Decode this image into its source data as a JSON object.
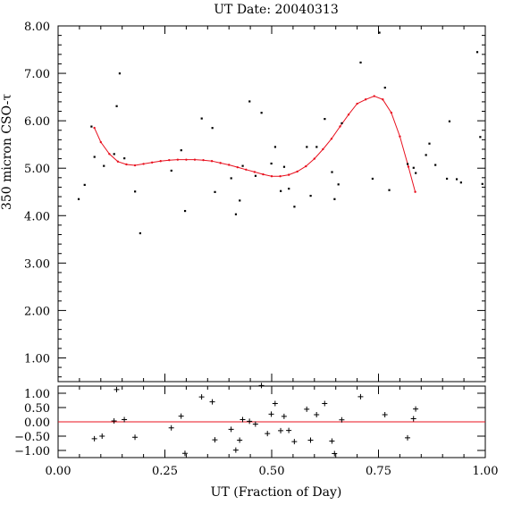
{
  "chart_data": [
    {
      "type": "scatter",
      "panel": "main",
      "title": "UT Date: 20040313",
      "ylabel": "350 micron CSO-τ",
      "xlim": [
        0.0,
        1.0
      ],
      "ylim": [
        0.5,
        8.0
      ],
      "yticks": [
        1.0,
        2.0,
        3.0,
        4.0,
        5.0,
        6.0,
        7.0,
        8.0
      ],
      "ytick_labels": [
        "1.00",
        "2.00",
        "3.00",
        "4.00",
        "5.00",
        "6.00",
        "7.00",
        "8.00"
      ],
      "grid": false,
      "series": [
        {
          "kind": "points",
          "x": [
            0.048,
            0.062,
            0.078,
            0.085,
            0.107,
            0.131,
            0.137,
            0.144,
            0.155,
            0.18,
            0.192,
            0.265,
            0.288,
            0.297,
            0.336,
            0.361,
            0.367,
            0.405,
            0.416,
            0.425,
            0.432,
            0.448,
            0.462,
            0.476,
            0.499,
            0.508,
            0.521,
            0.529,
            0.54,
            0.553,
            0.582,
            0.591,
            0.605,
            0.624,
            0.641,
            0.647,
            0.656,
            0.664,
            0.708,
            0.736,
            0.752,
            0.765,
            0.775,
            0.818,
            0.832,
            0.837,
            0.861,
            0.869,
            0.883,
            0.91,
            0.916,
            0.933,
            0.943,
            0.981,
            0.988,
            0.993
          ],
          "y": [
            4.35,
            4.65,
            5.88,
            5.24,
            5.05,
            5.3,
            6.31,
            7.0,
            5.21,
            4.51,
            3.63,
            4.95,
            5.38,
            4.1,
            6.05,
            5.85,
            4.5,
            4.79,
            4.03,
            4.32,
            5.05,
            6.41,
            4.84,
            6.17,
            5.1,
            5.45,
            4.52,
            5.03,
            4.57,
            4.19,
            5.45,
            4.42,
            5.45,
            6.04,
            4.92,
            4.35,
            4.66,
            5.95,
            7.23,
            4.78,
            7.86,
            6.7,
            4.54,
            5.09,
            5.01,
            4.9,
            5.28,
            5.52,
            5.07,
            4.78,
            5.99,
            4.77,
            4.7,
            7.45,
            5.66,
            4.67
          ]
        },
        {
          "kind": "fit",
          "x": [
            0.085,
            0.1,
            0.12,
            0.14,
            0.16,
            0.18,
            0.2,
            0.22,
            0.24,
            0.26,
            0.28,
            0.3,
            0.32,
            0.34,
            0.36,
            0.38,
            0.4,
            0.42,
            0.44,
            0.46,
            0.48,
            0.5,
            0.52,
            0.54,
            0.56,
            0.58,
            0.6,
            0.62,
            0.64,
            0.66,
            0.68,
            0.7,
            0.72,
            0.74,
            0.76,
            0.78,
            0.8,
            0.82,
            0.836
          ],
          "y": [
            5.85,
            5.55,
            5.3,
            5.14,
            5.08,
            5.06,
            5.09,
            5.12,
            5.15,
            5.17,
            5.18,
            5.18,
            5.18,
            5.17,
            5.15,
            5.11,
            5.07,
            5.02,
            4.97,
            4.92,
            4.87,
            4.83,
            4.83,
            4.86,
            4.93,
            5.04,
            5.2,
            5.4,
            5.62,
            5.88,
            6.13,
            6.36,
            6.45,
            6.52,
            6.45,
            6.17,
            5.67,
            5.03,
            4.5
          ]
        }
      ]
    },
    {
      "type": "scatter",
      "panel": "residuals",
      "xlabel": "UT (Fraction of Day)",
      "xlim": [
        0.0,
        1.0
      ],
      "ylim": [
        -1.25,
        1.25
      ],
      "xticks": [
        0.0,
        0.25,
        0.5,
        0.75,
        1.0
      ],
      "xtick_labels": [
        "0.00",
        "0.25",
        "0.50",
        "0.75",
        "1.00"
      ],
      "yticks": [
        -1.0,
        -0.5,
        0.0,
        0.5,
        1.0
      ],
      "ytick_labels": [
        "−1.00",
        "−0.50",
        "0.00",
        "0.50",
        "1.00"
      ],
      "zero_line": 0.0,
      "grid": false,
      "series": [
        {
          "kind": "points",
          "x": [
            0.085,
            0.103,
            0.131,
            0.137,
            0.155,
            0.18,
            0.265,
            0.288,
            0.297,
            0.336,
            0.361,
            0.367,
            0.405,
            0.416,
            0.425,
            0.432,
            0.448,
            0.462,
            0.476,
            0.49,
            0.499,
            0.508,
            0.521,
            0.529,
            0.54,
            0.553,
            0.582,
            0.591,
            0.605,
            0.624,
            0.641,
            0.647,
            0.664,
            0.708,
            0.765,
            0.818,
            0.832,
            0.837
          ],
          "y": [
            -0.59,
            -0.5,
            0.03,
            1.13,
            0.08,
            -0.54,
            -0.21,
            0.2,
            -1.1,
            0.87,
            0.7,
            -0.63,
            -0.26,
            -0.99,
            -0.64,
            0.08,
            0.02,
            -0.08,
            1.27,
            -0.41,
            0.27,
            0.64,
            -0.31,
            0.19,
            -0.3,
            -0.69,
            0.44,
            -0.64,
            0.25,
            0.64,
            -0.67,
            -1.11,
            0.07,
            0.88,
            0.25,
            -0.56,
            0.11,
            0.45
          ]
        }
      ]
    }
  ]
}
